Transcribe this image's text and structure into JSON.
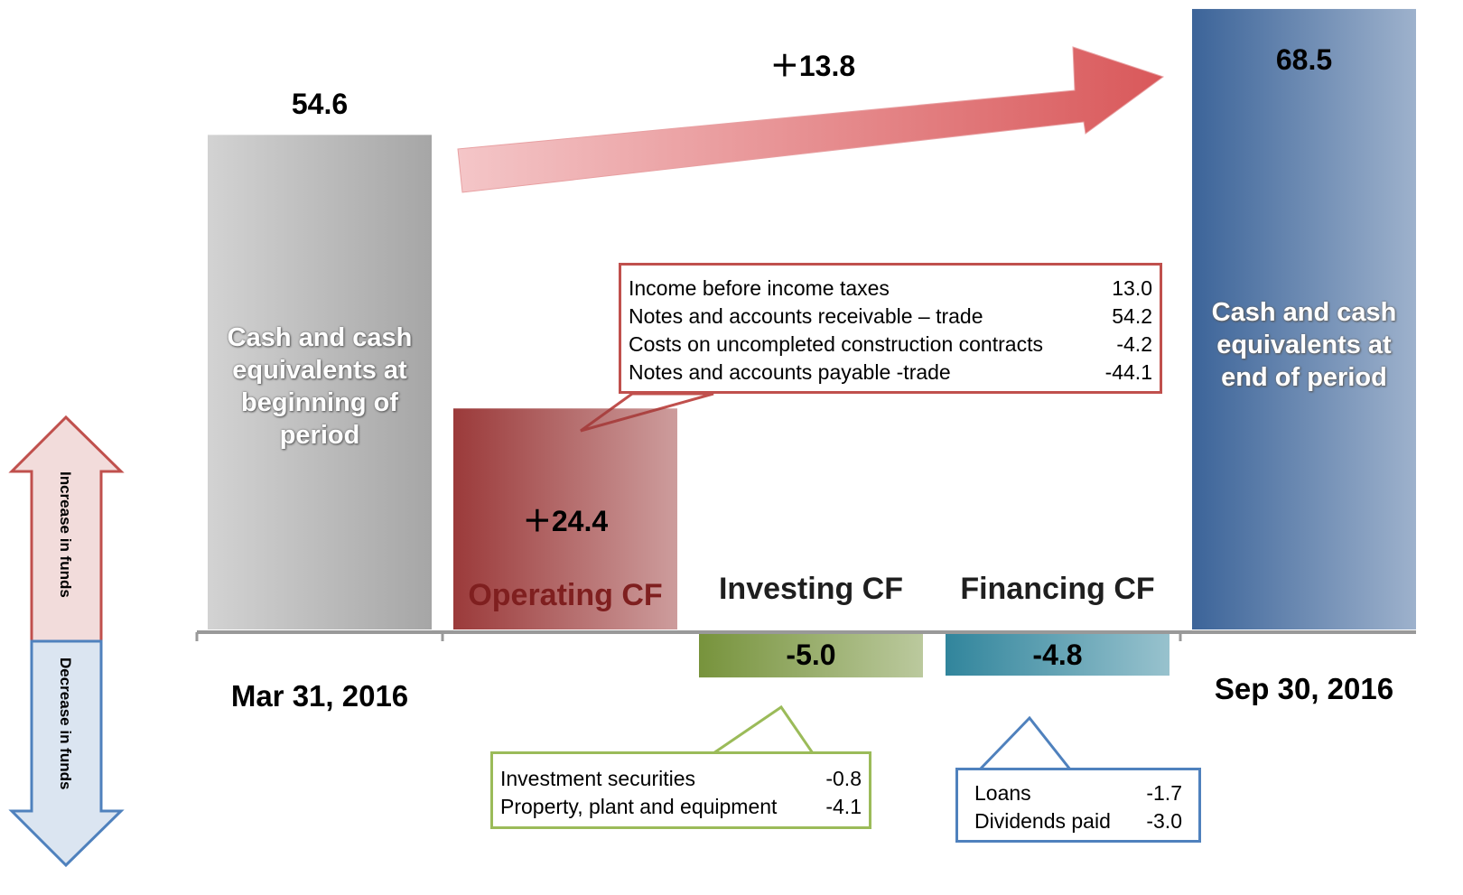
{
  "chart_data": {
    "type": "bar",
    "categories": [
      "Cash and cash equivalents at beginning of period",
      "Operating CF",
      "Investing CF",
      "Financing CF",
      "Cash and cash equivalents at end of period"
    ],
    "x_labels": [
      "Mar 31, 2016",
      null,
      null,
      null,
      "Sep 30, 2016"
    ],
    "values": [
      54.6,
      24.4,
      -5.0,
      -4.8,
      68.5
    ],
    "value_labels": [
      "54.6",
      "＋24.4",
      "-5.0",
      "-4.8",
      "68.5"
    ],
    "colors": [
      "#a6a6a6",
      "#9b3a3a",
      "#77933c",
      "#31859c",
      "#3c6499"
    ],
    "change": {
      "value": 13.8,
      "label": "＋13.8",
      "color": "#d9585a"
    },
    "callouts": [
      {
        "items": [
          "Income before income taxes",
          "Notes and accounts receivable – trade",
          "Costs on uncompleted construction contracts",
          "Notes and accounts payable -trade"
        ],
        "values": [
          13.0,
          54.2,
          -4.2,
          -44.1
        ],
        "value_labels": [
          "13.0",
          "54.2",
          "-4.2",
          "-44.1"
        ]
      },
      {
        "items": [
          "Investment securities",
          "Property, plant and equipment"
        ],
        "values": [
          -0.8,
          -4.1
        ],
        "value_labels": [
          "-0.8",
          "-4.1"
        ]
      },
      {
        "items": [
          "Loans",
          "Dividends paid"
        ],
        "values": [
          -1.7,
          -3.0
        ],
        "value_labels": [
          "-1.7",
          "-3.0"
        ]
      }
    ],
    "legend": [
      "Increase in funds",
      "Decrease in funds"
    ]
  }
}
